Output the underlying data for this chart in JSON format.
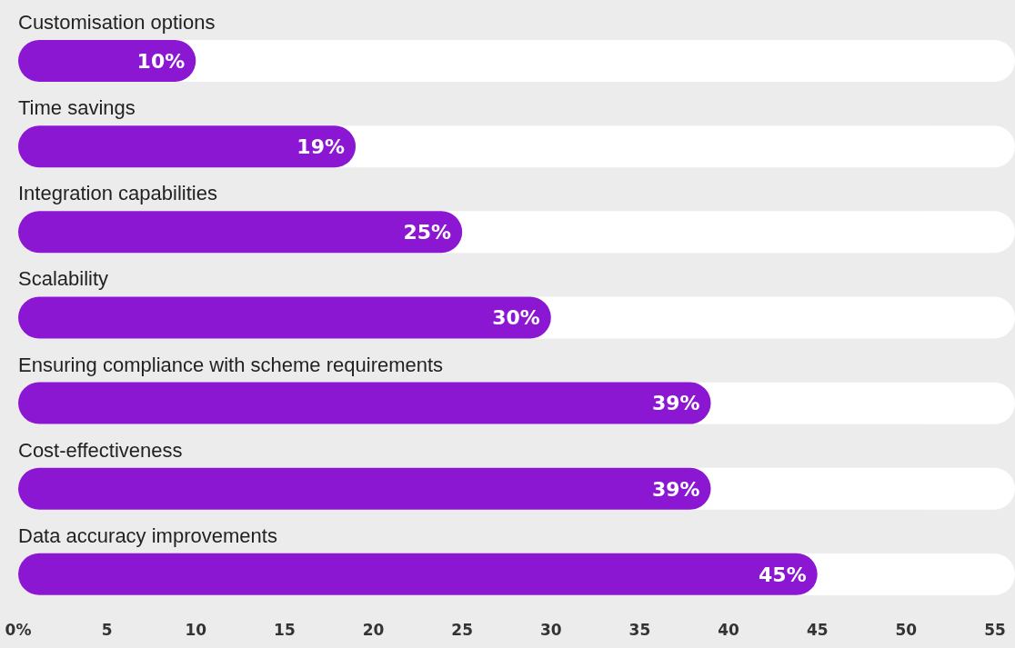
{
  "chart_data": {
    "type": "bar",
    "orientation": "horizontal",
    "categories": [
      "Customisation options",
      "Time savings",
      "Integration capabilities",
      "Scalability",
      "Ensuring compliance with scheme requirements",
      "Cost-effectiveness",
      "Data accuracy improvements"
    ],
    "values": [
      10,
      19,
      25,
      30,
      39,
      39,
      45
    ],
    "value_labels": [
      "10%",
      "19%",
      "25%",
      "30%",
      "39%",
      "39%",
      "45%"
    ],
    "color": "#8b17d3",
    "xlim": [
      0,
      55
    ],
    "xticks": [
      {
        "value": 0,
        "label": "0%"
      },
      5,
      10,
      15,
      20,
      25,
      30,
      35,
      40,
      45,
      50,
      55
    ],
    "grid": false
  }
}
